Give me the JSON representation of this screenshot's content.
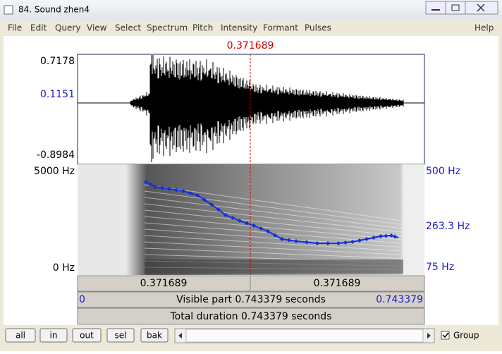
{
  "window": {
    "title": "84. Sound zhen4"
  },
  "menu": {
    "items": [
      "File",
      "Edit",
      "Query",
      "View",
      "Select",
      "Spectrum",
      "Pitch",
      "Intensity",
      "Formant",
      "Pulses"
    ],
    "help": "Help"
  },
  "cursor": {
    "time": "0.371689"
  },
  "waveform": {
    "max": "0.7178",
    "cursor_value": "0.1151",
    "min": "-0.8984"
  },
  "spectrogram": {
    "top": "5000 Hz",
    "bottom": "0 Hz"
  },
  "pitch": {
    "top": "500 Hz",
    "cursor": "263.3 Hz",
    "bottom": "75 Hz"
  },
  "segments": [
    "0.371689",
    "0.371689"
  ],
  "visible": {
    "start": "0",
    "text": "Visible part 0.743379 seconds",
    "end": "0.743379"
  },
  "total": {
    "text": "Total duration 0.743379 seconds"
  },
  "buttons": [
    "all",
    "in",
    "out",
    "sel",
    "bak"
  ],
  "group": {
    "label": "Group"
  }
}
